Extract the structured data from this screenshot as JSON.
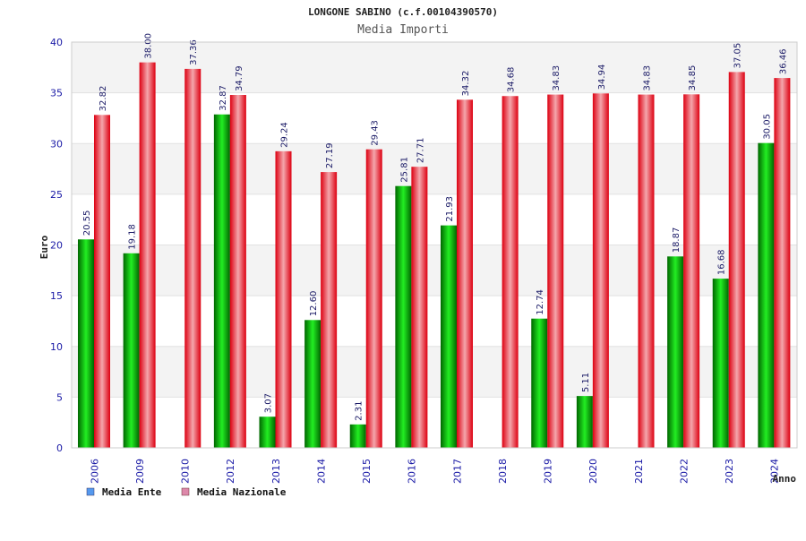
{
  "chart_data": {
    "type": "bar",
    "title": "LONGONE SABINO (c.f.00104390570)",
    "subtitle": "Media Importi",
    "xlabel": "Anno",
    "ylabel": "Euro",
    "ylim": [
      0,
      40
    ],
    "yticks": [
      "0",
      "5",
      "10",
      "15",
      "20",
      "25",
      "30",
      "35",
      "40"
    ],
    "grid": true,
    "legend_position": "bottom-left",
    "categories": [
      "2006",
      "2009",
      "2010",
      "2012",
      "2013",
      "2014",
      "2015",
      "2016",
      "2017",
      "2018",
      "2019",
      "2020",
      "2021",
      "2022",
      "2023",
      "2024"
    ],
    "series": [
      {
        "name": "Media Ente",
        "color": "#00bb00",
        "legend_color": "#5599ee",
        "values": [
          20.55,
          19.18,
          null,
          32.87,
          3.07,
          12.6,
          2.31,
          25.81,
          21.93,
          null,
          12.74,
          5.11,
          null,
          18.87,
          16.68,
          30.05
        ],
        "labels": [
          "20.55",
          "19.18",
          "",
          "32.87",
          "3.07",
          "12.60",
          "2.31",
          "25.81",
          "21.93",
          "",
          "12.74",
          "5.11",
          "",
          "18.87",
          "16.68",
          "30.05"
        ]
      },
      {
        "name": "Media Nazionale",
        "color": "#ee0011",
        "legend_color": "#dd88aa",
        "values": [
          32.82,
          38.0,
          37.36,
          34.79,
          29.24,
          27.19,
          29.43,
          27.71,
          34.32,
          34.68,
          34.83,
          34.94,
          34.83,
          34.85,
          37.05,
          36.46
        ],
        "labels": [
          "32.82",
          "38.00",
          "37.36",
          "34.79",
          "29.24",
          "27.19",
          "29.43",
          "27.71",
          "34.32",
          "34.68",
          "34.83",
          "34.94",
          "34.83",
          "34.85",
          "37.05",
          "36.46"
        ]
      }
    ]
  }
}
